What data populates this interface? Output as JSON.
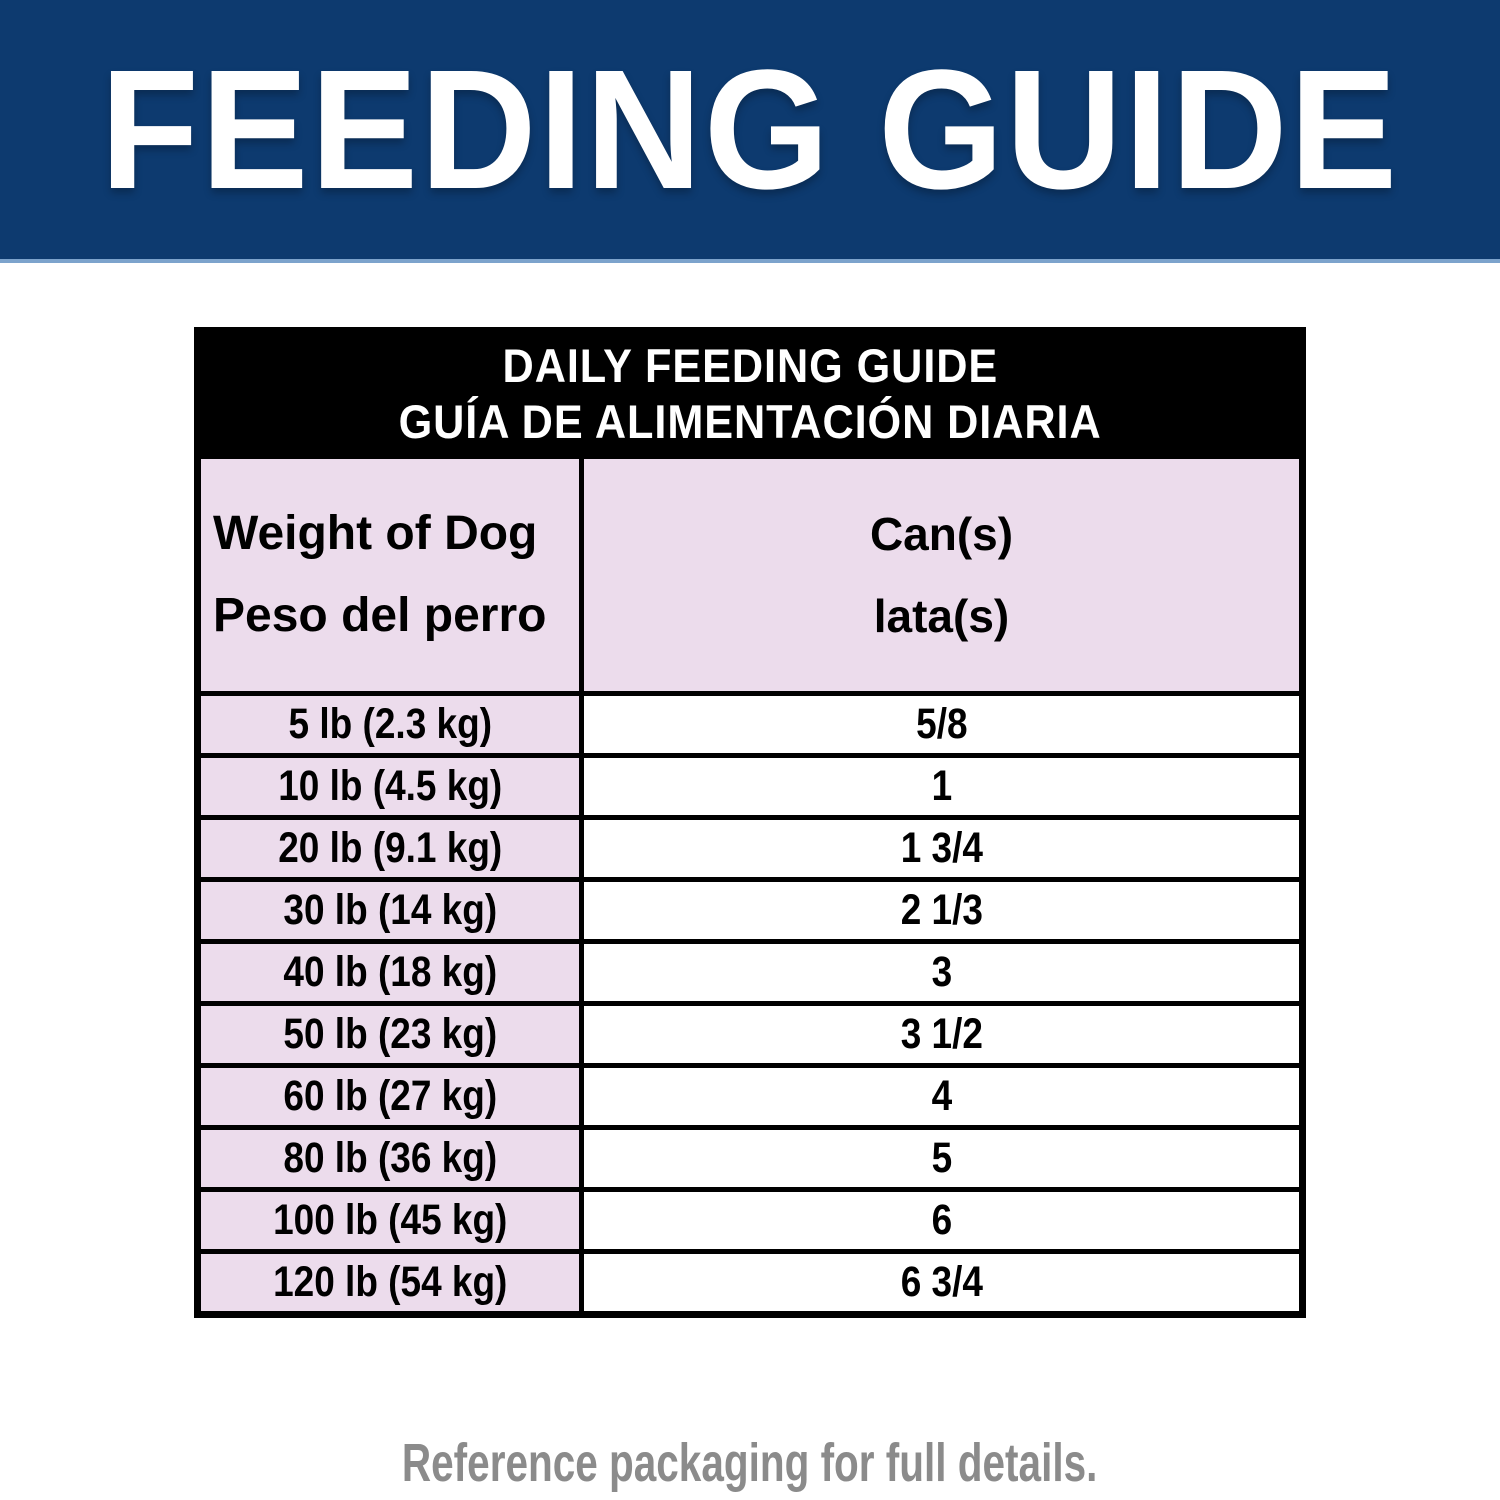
{
  "banner": {
    "title": "FEEDING GUIDE",
    "bg_color": "#0d3a6f",
    "underline_color": "#7ca3cc",
    "text_color": "#ffffff"
  },
  "table": {
    "title_en": "DAILY FEEDING GUIDE",
    "title_es": "GUÍA DE ALIMENTACIÓN DIARIA",
    "columns": [
      {
        "en": "Weight of Dog",
        "es": "Peso del perro"
      },
      {
        "en": "Can(s)",
        "es": "lata(s)"
      }
    ],
    "rows": [
      {
        "weight": "5 lb (2.3 kg)",
        "cans": "5/8"
      },
      {
        "weight": "10 lb (4.5 kg)",
        "cans": "1"
      },
      {
        "weight": "20 lb (9.1 kg)",
        "cans": "1 3/4"
      },
      {
        "weight": "30 lb (14 kg)",
        "cans": "2 1/3"
      },
      {
        "weight": "40 lb (18 kg)",
        "cans": "3"
      },
      {
        "weight": "50 lb (23 kg)",
        "cans": "3 1/2"
      },
      {
        "weight": "60 lb (27 kg)",
        "cans": "4"
      },
      {
        "weight": "80 lb (36 kg)",
        "cans": "5"
      },
      {
        "weight": "100 lb (45 kg)",
        "cans": "6"
      },
      {
        "weight": "120 lb (54 kg)",
        "cans": "6 3/4"
      }
    ],
    "colors": {
      "title_band_bg": "#000000",
      "title_band_text": "#ffffff",
      "weight_column_bg": "#ecdcec",
      "cans_column_bg": "#ffffff",
      "border": "#000000"
    }
  },
  "footer": {
    "note": "Reference packaging for full details.",
    "color": "#8b8b8b"
  }
}
